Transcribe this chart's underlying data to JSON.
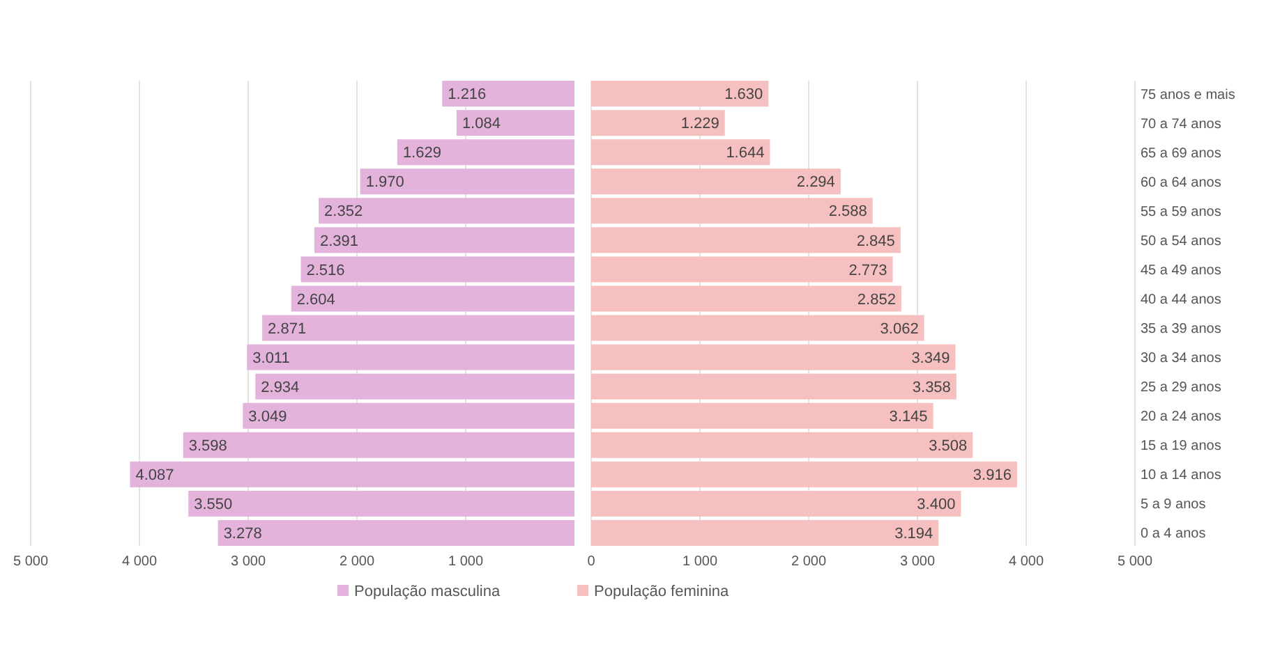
{
  "chart_data": [
    {
      "type": "bar",
      "orientation": "horizontal",
      "tick_labels": "x",
      "categories": [
        null,
        null,
        null,
        null,
        null,
        null,
        null,
        null,
        null,
        null,
        null,
        null,
        null,
        null,
        null,
        null
      ],
      "series": [
        {
          "name": "População masculina",
          "color": "#e3b3dc",
          "values": [
            1216,
            1084,
            1629,
            1970,
            2352,
            2391,
            2516,
            2604,
            2871,
            3011,
            2934,
            3049,
            3598,
            4087,
            3550,
            3278
          ],
          "value_labels": [
            "1.216",
            "1.084",
            "1.629",
            "1.970",
            "2.352",
            "2.391",
            "2.516",
            "2.604",
            "2.871",
            "3.011",
            "2.934",
            "3.049",
            "3.598",
            "4.087",
            "3.550",
            "3.278"
          ]
        }
      ],
      "xlim": [
        5000,
        0
      ],
      "xticks": [
        {
          "value": 5000,
          "label": "5 000"
        },
        {
          "value": 4000,
          "label": "4 000"
        },
        {
          "value": 3000,
          "label": "3 000"
        },
        {
          "value": 2000,
          "label": "2 000"
        },
        {
          "value": 1000,
          "label": "1 000"
        }
      ],
      "grid": "x",
      "legend": "bottom"
    },
    {
      "type": "bar",
      "orientation": "horizontal",
      "categories": [
        "75 anos e mais",
        "70 a 74 anos",
        "65 a 69 anos",
        "60 a 64 anos",
        "55 a 59 anos",
        "50 a 54 anos",
        "45 a 49 anos",
        "40 a 44 anos",
        "35 a 39 anos",
        "30 a 34 anos",
        "25 a 29 anos",
        "20 a 24 anos",
        "15 a 19 anos",
        "10 a 14 anos",
        "5 a 9 anos",
        "0 a 4 anos"
      ],
      "series": [
        {
          "name": "População feminina",
          "color": "#f7c0c0",
          "values": [
            1630,
            1229,
            1644,
            2294,
            2588,
            2845,
            2773,
            2852,
            3062,
            3349,
            3358,
            3145,
            3508,
            3916,
            3400,
            3194
          ],
          "value_labels": [
            "1.630",
            "1.229",
            "1.644",
            "2.294",
            "2.588",
            "2.845",
            "2.773",
            "2.852",
            "3.062",
            "3.349",
            "3.358",
            "3.145",
            "3.508",
            "3.916",
            "3.400",
            "3.194"
          ]
        }
      ],
      "xlim": [
        0,
        5000
      ],
      "xticks": [
        0,
        {
          "value": 1000,
          "label": "1 000"
        },
        {
          "value": 2000,
          "label": "2 000"
        },
        {
          "value": 3000,
          "label": "3 000"
        },
        {
          "value": 4000,
          "label": "4 000"
        },
        {
          "value": 5000,
          "label": "5 000"
        }
      ],
      "grid": "x",
      "legend": "bottom"
    }
  ]
}
